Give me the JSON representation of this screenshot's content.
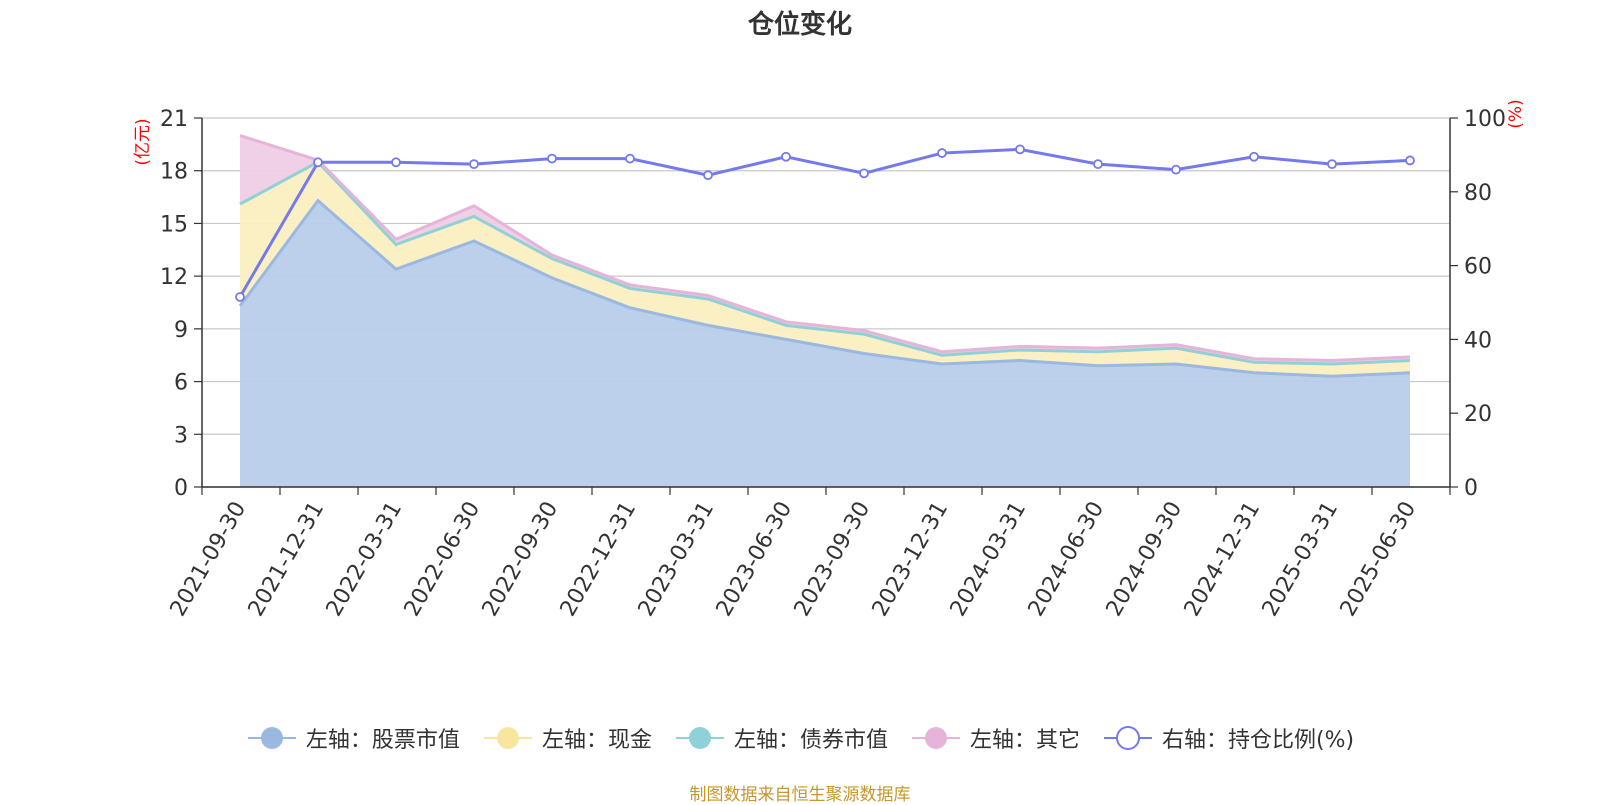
{
  "title": "仓位变化",
  "source": "制图数据来自恒生聚源数据库",
  "chart_data": {
    "type": "area",
    "title": "仓位变化",
    "categories": [
      "2021-09-30",
      "2021-12-31",
      "2022-03-31",
      "2022-06-30",
      "2022-09-30",
      "2022-12-31",
      "2023-03-31",
      "2023-06-30",
      "2023-09-30",
      "2023-12-31",
      "2024-03-31",
      "2024-06-30",
      "2024-09-30",
      "2024-12-31",
      "2025-03-31",
      "2025-06-30"
    ],
    "left_axis": {
      "label": "(亿元)",
      "ylim": [
        0,
        21
      ],
      "ticks": [
        "0",
        "3",
        "6",
        "9",
        "12",
        "15",
        "18",
        "21"
      ]
    },
    "right_axis": {
      "label": "(%)",
      "ylim": [
        0,
        100
      ],
      "ticks": [
        "0",
        "20",
        "40",
        "60",
        "80",
        "100"
      ]
    },
    "series": [
      {
        "name": "左轴：股票市值",
        "axis": "left",
        "stack": true,
        "color": "#9ab8e0",
        "fill": "#b9cdea",
        "values": [
          10.3,
          16.3,
          12.4,
          14.0,
          11.9,
          10.2,
          9.2,
          8.4,
          7.6,
          7.0,
          7.2,
          6.9,
          7.0,
          6.5,
          6.3,
          6.5
        ]
      },
      {
        "name": "左轴：现金",
        "axis": "left",
        "stack": true,
        "color": "#f8e6a0",
        "fill": "#fbefc0",
        "values": [
          5.8,
          2.2,
          1.4,
          1.4,
          1.1,
          1.1,
          1.5,
          0.8,
          1.1,
          0.5,
          0.6,
          0.8,
          0.9,
          0.6,
          0.7,
          0.7
        ]
      },
      {
        "name": "左轴：债券市值",
        "axis": "left",
        "stack": true,
        "color": "#90d0d8",
        "fill": "#b6e2e6",
        "values": [
          0,
          0,
          0,
          0,
          0,
          0,
          0,
          0,
          0,
          0,
          0,
          0,
          0,
          0,
          0,
          0
        ]
      },
      {
        "name": "左轴：其它",
        "axis": "left",
        "stack": true,
        "color": "#e5b4d8",
        "fill": "#efcde5",
        "values": [
          3.9,
          0.1,
          0.3,
          0.6,
          0.2,
          0.2,
          0.2,
          0.2,
          0.2,
          0.2,
          0.2,
          0.2,
          0.2,
          0.2,
          0.2,
          0.2
        ]
      },
      {
        "name": "右轴：持仓比例(%)",
        "axis": "right",
        "stack": false,
        "color": "#7479ee",
        "values": [
          51.5,
          88.0,
          88.0,
          87.5,
          89.0,
          89.0,
          84.5,
          89.5,
          85.0,
          90.5,
          91.5,
          87.5,
          86.0,
          89.5,
          87.5,
          88.5
        ]
      }
    ],
    "legend_position": "bottom",
    "grid": true
  }
}
